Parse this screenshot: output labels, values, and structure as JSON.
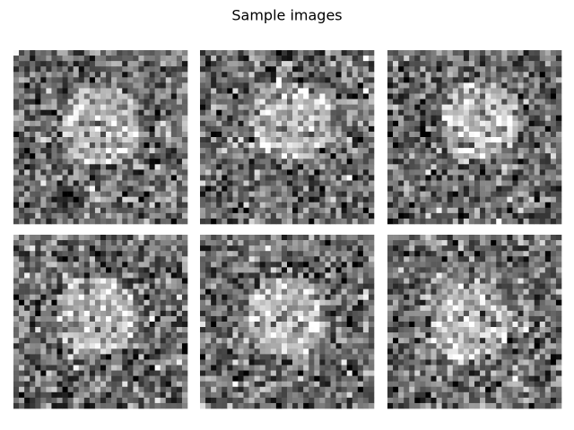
{
  "title": "Sample images"
}
